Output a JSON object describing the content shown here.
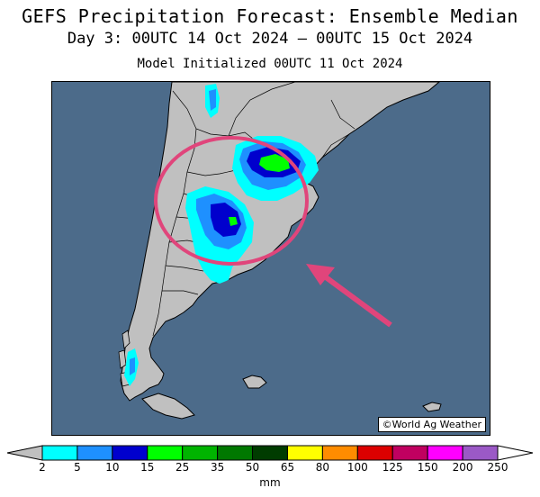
{
  "header": {
    "title": "GEFS Precipitation Forecast: Ensemble Median",
    "subtitle": "Day 3: 00UTC 14 Oct 2024 — 00UTC 15 Oct 2024",
    "init": "Model Initialized 00UTC 11 Oct 2024"
  },
  "map": {
    "ocean_color": "#4c6b8a",
    "land_color": "#c0c0c0",
    "credit": "©World Ag Weather",
    "annotation_color": "#e0457b"
  },
  "legend": {
    "unit": "mm",
    "left_arrow_color": "#c0c0c0",
    "right_arrow_color": "#ffffff",
    "bins": [
      {
        "color": "#00ffff"
      },
      {
        "color": "#1e90ff"
      },
      {
        "color": "#0000cd"
      },
      {
        "color": "#00ff00"
      },
      {
        "color": "#00b400"
      },
      {
        "color": "#007800"
      },
      {
        "color": "#003c00"
      },
      {
        "color": "#ffff00"
      },
      {
        "color": "#ff8c00"
      },
      {
        "color": "#dc0000"
      },
      {
        "color": "#c00060"
      },
      {
        "color": "#ff00ff"
      },
      {
        "color": "#9b59c6"
      }
    ],
    "ticks": [
      "2",
      "5",
      "10",
      "15",
      "25",
      "35",
      "50",
      "65",
      "80",
      "100",
      "125",
      "150",
      "200",
      "250"
    ]
  }
}
